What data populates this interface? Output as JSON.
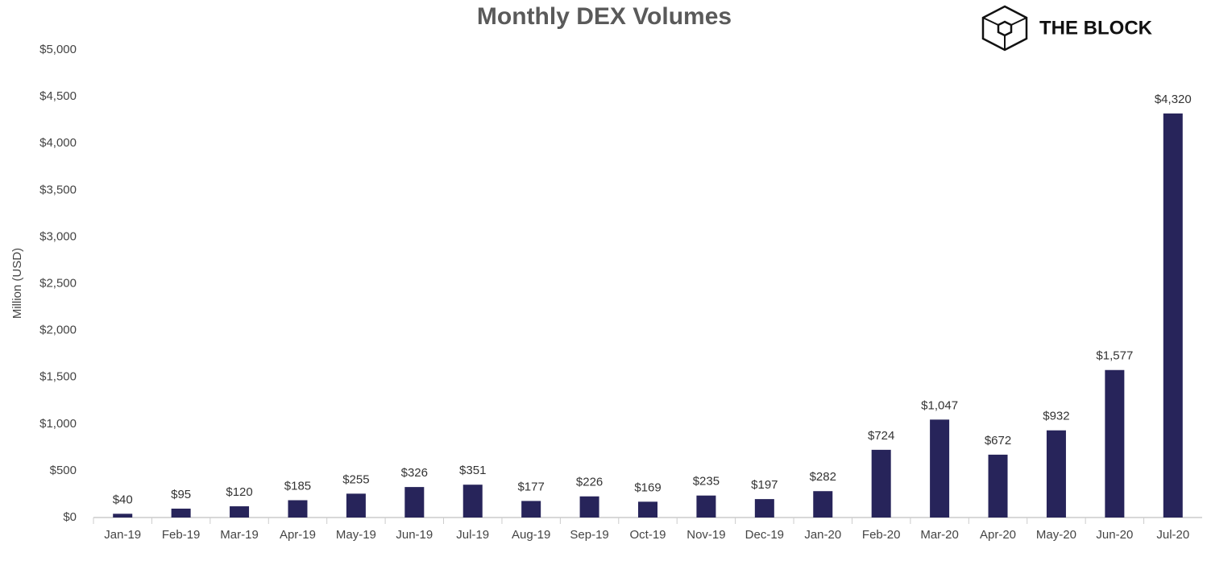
{
  "chart_data": {
    "type": "bar",
    "title": "Monthly DEX Volumes",
    "brand": "THE BLOCK",
    "y_label": "Million (USD)",
    "categories": [
      "Jan-19",
      "Feb-19",
      "Mar-19",
      "Apr-19",
      "May-19",
      "Jun-19",
      "Jul-19",
      "Aug-19",
      "Sep-19",
      "Oct-19",
      "Nov-19",
      "Dec-19",
      "Jan-20",
      "Feb-20",
      "Mar-20",
      "Apr-20",
      "May-20",
      "Jun-20",
      "Jul-20"
    ],
    "values": [
      40,
      95,
      120,
      185,
      255,
      326,
      351,
      177,
      226,
      169,
      235,
      197,
      282,
      724,
      1047,
      672,
      932,
      1577,
      4320
    ],
    "value_labels": [
      "$40",
      "$95",
      "$120",
      "$185",
      "$255",
      "$326",
      "$351",
      "$177",
      "$226",
      "$169",
      "$235",
      "$197",
      "$282",
      "$724",
      "$1,047",
      "$672",
      "$932",
      "$1,577",
      "$4,320"
    ],
    "color": "#27245a",
    "ylim": [
      0,
      5000
    ],
    "yticks": [
      {
        "value": 0,
        "label": "$0"
      },
      {
        "value": 500,
        "label": "$500"
      },
      {
        "value": 1000,
        "label": "$1,000"
      },
      {
        "value": 1500,
        "label": "$1,500"
      },
      {
        "value": 2000,
        "label": "$2,000"
      },
      {
        "value": 2500,
        "label": "$2,500"
      },
      {
        "value": 3000,
        "label": "$3,000"
      },
      {
        "value": 3500,
        "label": "$3,500"
      },
      {
        "value": 4000,
        "label": "$4,000"
      },
      {
        "value": 4500,
        "label": "$4,500"
      },
      {
        "value": 5000,
        "label": "$5,000"
      }
    ],
    "grid": false
  }
}
